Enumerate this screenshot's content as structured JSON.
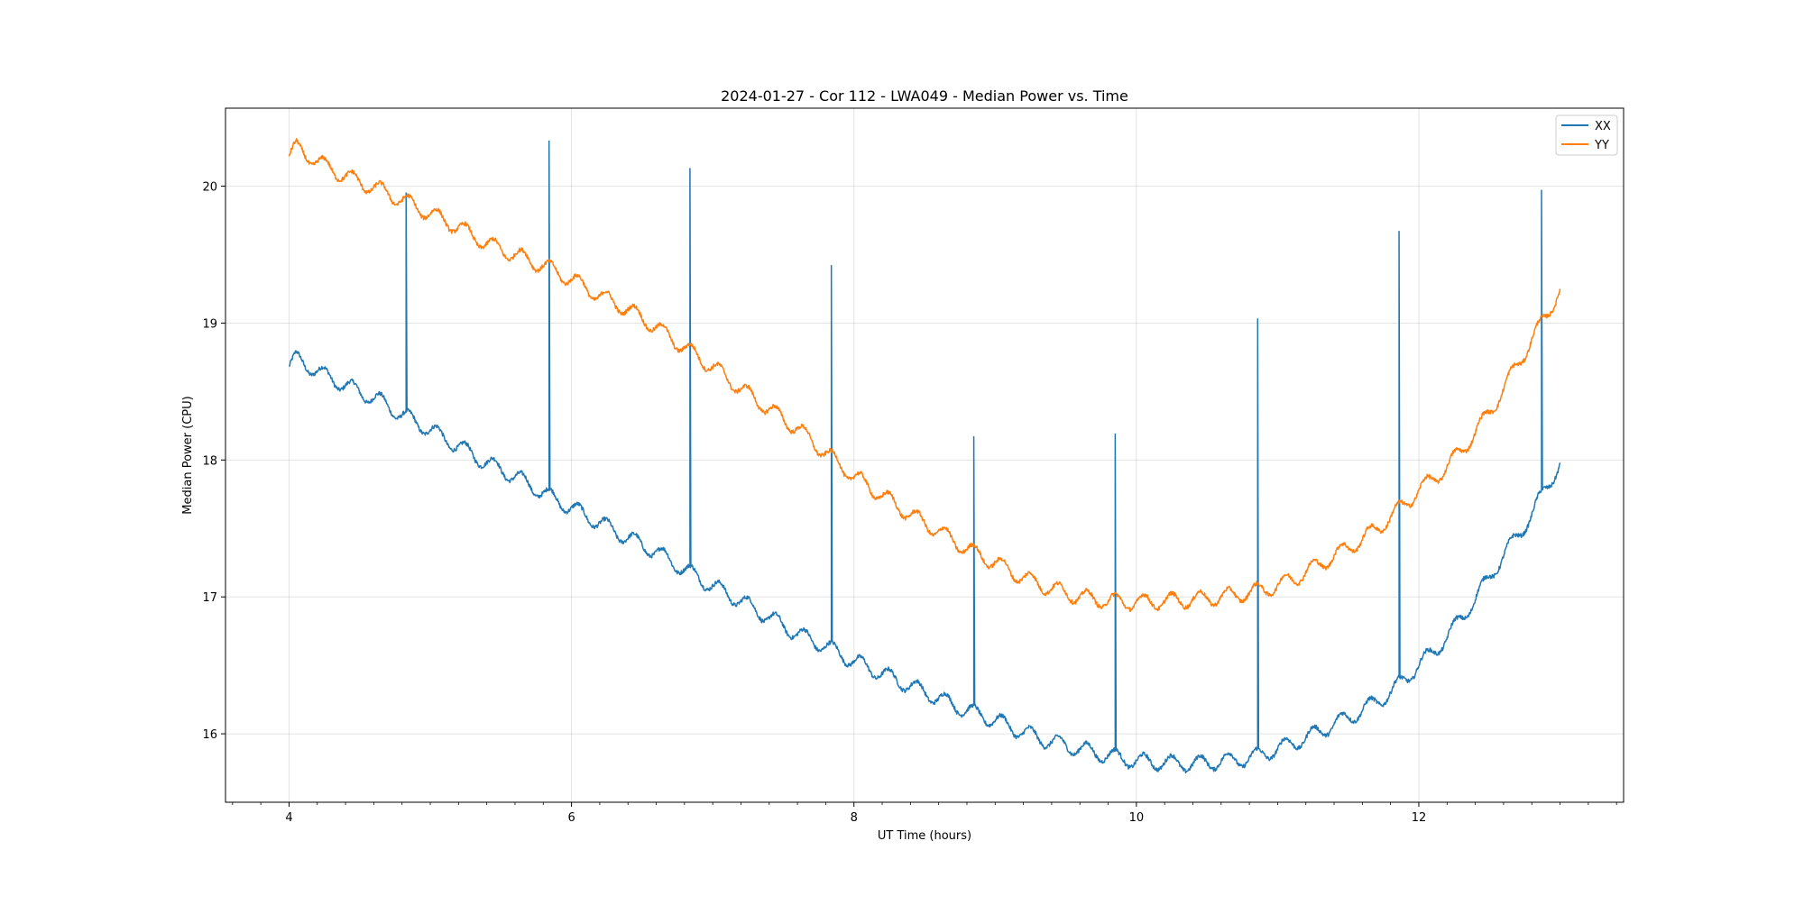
{
  "chart_data": {
    "type": "line",
    "title": "2024-01-27 - Cor 112 - LWA049 - Median Power vs. Time",
    "xlabel": "UT Time (hours)",
    "ylabel": "Median Power (CPU)",
    "xlim": [
      3.55,
      13.45
    ],
    "ylim": [
      15.5,
      20.57
    ],
    "xticks": [
      4,
      6,
      8,
      10,
      12
    ],
    "xtick_labels": [
      "4",
      "6",
      "8",
      "10",
      "12"
    ],
    "yticks": [
      16,
      17,
      18,
      19,
      20
    ],
    "ytick_labels": [
      "16",
      "17",
      "18",
      "19",
      "20"
    ],
    "grid": true,
    "legend_position": "top-right",
    "series": [
      {
        "name": "XX",
        "color": "#1f77b4",
        "x": [
          4.0,
          4.05,
          4.25,
          4.45,
          4.63,
          4.8,
          5.0,
          5.2,
          5.4,
          5.6,
          5.8,
          6.0,
          6.2,
          6.4,
          6.6,
          6.8,
          7.0,
          7.2,
          7.4,
          7.6,
          7.8,
          8.0,
          8.2,
          8.4,
          8.6,
          8.8,
          9.0,
          9.2,
          9.4,
          9.6,
          9.8,
          10.0,
          10.2,
          10.4,
          10.6,
          10.8,
          11.0,
          11.2,
          11.4,
          11.6,
          11.8,
          11.9,
          12.0,
          12.1,
          12.2,
          12.3,
          12.4,
          12.5,
          12.6,
          12.7,
          12.8,
          12.9,
          13.0
        ],
        "y": [
          18.68,
          18.74,
          18.62,
          18.52,
          18.44,
          18.33,
          18.22,
          18.1,
          17.98,
          17.88,
          17.76,
          17.65,
          17.54,
          17.43,
          17.33,
          17.2,
          17.08,
          16.97,
          16.85,
          16.73,
          16.64,
          16.53,
          16.44,
          16.35,
          16.26,
          16.17,
          16.1,
          16.01,
          15.94,
          15.89,
          15.84,
          15.8,
          15.79,
          15.78,
          15.8,
          15.82,
          15.89,
          15.97,
          16.07,
          16.17,
          16.3,
          16.4,
          16.5,
          16.6,
          16.7,
          16.85,
          16.98,
          17.15,
          17.3,
          17.45,
          17.6,
          17.8,
          17.97
        ],
        "spikes": [
          [
            4.83,
            19.95
          ],
          [
            5.84,
            20.33
          ],
          [
            6.84,
            20.13
          ],
          [
            7.84,
            19.42
          ],
          [
            8.85,
            18.17
          ],
          [
            9.85,
            18.19
          ],
          [
            10.86,
            19.03
          ],
          [
            11.86,
            19.67
          ],
          [
            12.87,
            19.97
          ]
        ]
      },
      {
        "name": "YY",
        "color": "#ff7f0e",
        "x": [
          4.0,
          4.05,
          4.25,
          4.45,
          4.63,
          4.8,
          5.0,
          5.2,
          5.4,
          5.6,
          5.8,
          6.0,
          6.2,
          6.4,
          6.6,
          6.8,
          7.0,
          7.2,
          7.4,
          7.6,
          7.8,
          8.0,
          8.2,
          8.4,
          8.6,
          8.8,
          9.0,
          9.2,
          9.4,
          9.6,
          9.8,
          10.0,
          10.2,
          10.4,
          10.6,
          10.8,
          11.0,
          11.2,
          11.4,
          11.6,
          11.8,
          11.9,
          12.0,
          12.1,
          12.2,
          12.3,
          12.4,
          12.5,
          12.6,
          12.7,
          12.8,
          12.9,
          13.0
        ],
        "y": [
          20.22,
          20.28,
          20.15,
          20.05,
          19.98,
          19.9,
          19.8,
          19.7,
          19.58,
          19.5,
          19.42,
          19.32,
          19.2,
          19.1,
          18.97,
          18.82,
          18.68,
          18.52,
          18.37,
          18.23,
          18.05,
          17.88,
          17.74,
          17.6,
          17.48,
          17.35,
          17.25,
          17.14,
          17.06,
          17.0,
          16.97,
          16.96,
          16.97,
          16.98,
          17.0,
          17.03,
          17.08,
          17.18,
          17.3,
          17.42,
          17.58,
          17.68,
          17.78,
          17.86,
          17.95,
          18.07,
          18.2,
          18.35,
          18.52,
          18.7,
          18.88,
          19.05,
          19.25
        ],
        "spikes": []
      }
    ]
  }
}
